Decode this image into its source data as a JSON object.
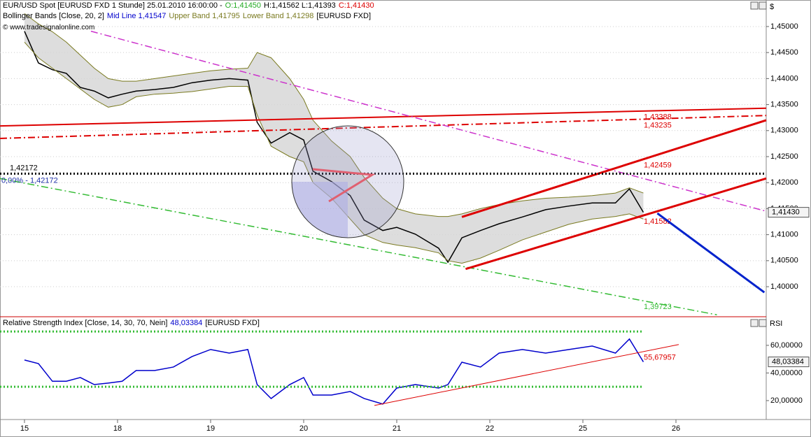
{
  "chart_data": [
    {
      "type": "line",
      "header": {
        "title": "EUR/USD Spot [EURUSD FXD  1 Stunde] 25.01.2010 16:00:00 -",
        "open": "O:1,41450",
        "high_low": "H:1,41562 L:1,41393",
        "close": "C:1,41430"
      },
      "indicator": {
        "name": "Bollinger Bands [Close, 20, 2]",
        "mid": "Mid Line 1,41547",
        "upper": "Upper Band 1,41795",
        "lower": "Lower Band 1,41298",
        "symbol": "[EURUSD FXD]"
      },
      "watermark": "© www.tradesignalonline.com",
      "axis_unit": "$",
      "x": [
        0,
        0.15,
        0.3,
        0.45,
        0.6,
        0.75,
        0.9,
        1.05,
        1.2,
        1.4,
        1.6,
        1.8,
        2.0,
        2.2,
        2.4,
        2.5,
        2.65,
        2.85,
        3.0,
        3.1,
        3.3,
        3.5,
        3.65,
        3.85,
        4.0,
        4.2,
        4.45,
        4.55,
        4.7,
        4.9,
        5.1,
        5.35,
        5.6,
        5.85,
        6.1,
        6.35,
        6.5,
        6.65
      ],
      "series": [
        {
          "color": "#000000",
          "values": [
            1.4491,
            1.443,
            1.4417,
            1.441,
            1.4383,
            1.4376,
            1.4363,
            1.437,
            1.4376,
            1.4379,
            1.4383,
            1.4392,
            1.4397,
            1.44,
            1.4397,
            1.4316,
            1.4276,
            1.4296,
            1.4282,
            1.4222,
            1.4202,
            1.4175,
            1.4128,
            1.4108,
            1.4114,
            1.4101,
            1.4074,
            1.4047,
            1.4094,
            1.4108,
            1.4121,
            1.4134,
            1.4148,
            1.4155,
            1.4161,
            1.4161,
            1.4188,
            1.4143
          ]
        },
        {
          "color": "#7a7a20",
          "values": [
            1.4525,
            1.4505,
            1.449,
            1.447,
            1.4445,
            1.442,
            1.44,
            1.4395,
            1.4395,
            1.44,
            1.4405,
            1.441,
            1.4415,
            1.4418,
            1.442,
            1.445,
            1.444,
            1.44,
            1.436,
            1.432,
            1.428,
            1.425,
            1.421,
            1.417,
            1.415,
            1.414,
            1.4135,
            1.4135,
            1.414,
            1.415,
            1.4158,
            1.4165,
            1.417,
            1.4172,
            1.4175,
            1.418,
            1.419,
            1.418
          ]
        },
        {
          "color": "#7a7a20",
          "values": [
            1.447,
            1.444,
            1.442,
            1.44,
            1.438,
            1.436,
            1.4345,
            1.435,
            1.4365,
            1.437,
            1.4372,
            1.4375,
            1.438,
            1.4385,
            1.4385,
            1.433,
            1.427,
            1.425,
            1.424,
            1.42,
            1.417,
            1.413,
            1.41,
            1.4085,
            1.408,
            1.4075,
            1.4065,
            1.405,
            1.4045,
            1.4055,
            1.407,
            1.409,
            1.4105,
            1.412,
            1.413,
            1.4135,
            1.414,
            1.413
          ]
        }
      ],
      "band_fill": "#d4d4d4",
      "xlim": [
        -0.263,
        7.97
      ],
      "ylim": [
        1.39436,
        1.4551
      ],
      "yticks": [
        {
          "value": 1.4,
          "label": "1,40000"
        },
        {
          "value": 1.405,
          "label": "1,40500"
        },
        {
          "value": 1.41,
          "label": "1,41000"
        },
        {
          "value": 1.415,
          "label": "1,41500"
        },
        {
          "value": 1.42,
          "label": "1,42000"
        },
        {
          "value": 1.425,
          "label": "1,42500"
        },
        {
          "value": 1.43,
          "label": "1,43000"
        },
        {
          "value": 1.435,
          "label": "1,43500"
        },
        {
          "value": 1.44,
          "label": "1,44000"
        },
        {
          "value": 1.445,
          "label": "1,44500"
        },
        {
          "value": 1.45,
          "label": "1,45000"
        }
      ],
      "grid": true,
      "lines": [
        {
          "color": "#dd0000",
          "style": "solid",
          "width": 2,
          "points": [
            [
              -0.263,
              1.4309
            ],
            [
              7.97,
              1.4343
            ]
          ],
          "label": "1,43388"
        },
        {
          "color": "#dd0000",
          "style": "dashdot",
          "width": 2,
          "points": [
            [
              -0.263,
              1.4285
            ],
            [
              7.97,
              1.4329
            ]
          ],
          "label": "1,43235"
        },
        {
          "color": "#cc33cc",
          "style": "dashdot",
          "width": 1.5,
          "points": [
            [
              0.714,
              1.4491
            ],
            [
              7.97,
              1.4145
            ]
          ]
        },
        {
          "color": "#33bb33",
          "style": "dashdot",
          "width": 1.5,
          "points": [
            [
              -0.263,
              1.4208
            ],
            [
              7.44,
              1.3946
            ]
          ],
          "label": "1,39723"
        },
        {
          "color": "#dd0000",
          "style": "solid",
          "width": 3,
          "points": [
            [
              4.7,
              1.4134
            ],
            [
              7.97,
              1.432
            ]
          ],
          "label": "1,42459"
        },
        {
          "color": "#dd0000",
          "style": "solid",
          "width": 3,
          "points": [
            [
              4.74,
              1.4034
            ],
            [
              7.97,
              1.4208
            ]
          ],
          "label": "1,41582"
        },
        {
          "color": "#000000",
          "style": "dot",
          "width": 3,
          "points": [
            [
              -0.263,
              1.42172
            ],
            [
              7.97,
              1.42172
            ]
          ]
        },
        {
          "color": "#0022cc",
          "style": "solid",
          "width": 3,
          "points": [
            [
              6.8,
              1.4141
            ],
            [
              7.95,
              1.3989
            ]
          ]
        }
      ],
      "level_label": "1,42172",
      "fib_label": "0,00% - 1,42172",
      "last_value": {
        "value": 1.4143,
        "label": "1,41430"
      }
    },
    {
      "type": "line",
      "header": {
        "title": "Relative Strength Index [Close, 14, 30, 70, Nein]",
        "value": "48,03384",
        "symbol": "[EURUSD FXD]"
      },
      "axis_unit": "RSI",
      "x": [
        0,
        0.15,
        0.3,
        0.45,
        0.6,
        0.75,
        0.9,
        1.05,
        1.2,
        1.4,
        1.6,
        1.8,
        2.0,
        2.2,
        2.4,
        2.5,
        2.65,
        2.85,
        3.0,
        3.1,
        3.3,
        3.5,
        3.65,
        3.85,
        4.0,
        4.2,
        4.45,
        4.55,
        4.7,
        4.9,
        5.1,
        5.35,
        5.6,
        5.85,
        6.1,
        6.35,
        6.5,
        6.65
      ],
      "series": [
        {
          "color": "#0000cc",
          "values": [
            49.4,
            46.8,
            34,
            34,
            36.7,
            31.6,
            32.7,
            34,
            41.8,
            41.8,
            44.3,
            51.9,
            57,
            54.4,
            57,
            31.6,
            21.5,
            31.6,
            36.7,
            24,
            24,
            26.6,
            21.5,
            17.5,
            29.1,
            31.6,
            29.1,
            31.6,
            47.8,
            44.3,
            54.4,
            57,
            54.4,
            57,
            59.5,
            54.4,
            64.6,
            48.03384
          ]
        }
      ],
      "xlim": [
        -0.263,
        7.97
      ],
      "ylim": [
        6.3,
        79.7
      ],
      "yticks": [
        {
          "value": 20,
          "label": "20,00000"
        },
        {
          "value": 40,
          "label": "40,00000"
        },
        {
          "value": 60,
          "label": "60,00000"
        }
      ],
      "xticks": [
        {
          "value": 0,
          "label": "15"
        },
        {
          "value": 1,
          "label": "18"
        },
        {
          "value": 2,
          "label": "19"
        },
        {
          "value": 3,
          "label": "20"
        },
        {
          "value": 4,
          "label": "21"
        },
        {
          "value": 5,
          "label": "22"
        },
        {
          "value": 6,
          "label": "25"
        },
        {
          "value": 7,
          "label": "26"
        }
      ],
      "grid": false,
      "lines": [
        {
          "color": "#33bb33",
          "style": "dot",
          "width": 3,
          "points": [
            [
              -0.263,
              70
            ],
            [
              6.65,
              70
            ]
          ]
        },
        {
          "color": "#33bb33",
          "style": "dot",
          "width": 3,
          "points": [
            [
              -0.263,
              30
            ],
            [
              6.65,
              30
            ]
          ]
        },
        {
          "color": "#dd0000",
          "style": "solid",
          "width": 1,
          "points": [
            [
              3.76,
              16.5
            ],
            [
              7.03,
              60.6
            ]
          ],
          "label": "55,67957"
        }
      ],
      "last_value": {
        "value": 48.03384,
        "label": "48,03384"
      }
    }
  ]
}
